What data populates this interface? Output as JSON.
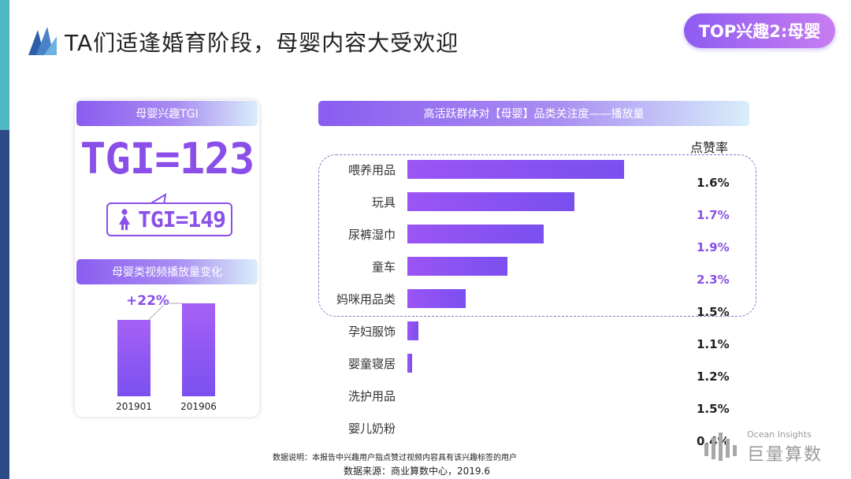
{
  "header": {
    "title": "TA们适逢婚育阶段，母婴内容大受欢迎",
    "badge": "TOP兴趣2:母婴"
  },
  "left_panel": {
    "tgi_header": "母婴兴趣TGI",
    "tgi_overall": "TGI=123",
    "tgi_female": "TGI=149",
    "video_header": "母婴类视频播放量变化",
    "growth": "+22%",
    "mini_chart": {
      "categories": [
        "201901",
        "201906"
      ],
      "values": [
        100,
        122
      ]
    }
  },
  "right_panel": {
    "header": "高活跃群体对【母婴】品类关注度——播放量",
    "like_rate_header": "点赞率"
  },
  "chart_data": {
    "type": "bar",
    "orientation": "horizontal",
    "title": "高活跃群体对【母婴】品类关注度——播放量",
    "categories": [
      "喂养用品",
      "玩具",
      "尿裤湿巾",
      "童车",
      "妈咪用品类",
      "孕妇服饰",
      "婴童寝居",
      "洗护用品",
      "婴儿奶粉"
    ],
    "values": [
      100,
      77,
      63,
      46,
      27,
      5,
      2,
      0,
      0
    ],
    "like_rates": [
      "1.6%",
      "1.7%",
      "1.9%",
      "2.3%",
      "1.5%",
      "1.1%",
      "1.2%",
      "1.5%",
      "0.4%"
    ],
    "highlighted_rates": [
      1,
      2,
      3
    ],
    "highlighted_group": [
      "喂养用品",
      "玩具",
      "尿裤湿巾",
      "童车",
      "妈咪用品类"
    ],
    "colors": {
      "bar": "#8a52f2",
      "rate_default": "#222222",
      "rate_highlight": "#8a4fe8"
    }
  },
  "footer": {
    "note": "数据说明：本报告中兴趣用户指点赞过视频内容具有该兴趣标签的用户",
    "source": "数据来源：商业算数中心，2019.6"
  },
  "brand": {
    "en": "Ocean Insights",
    "cn": "巨量算数"
  }
}
